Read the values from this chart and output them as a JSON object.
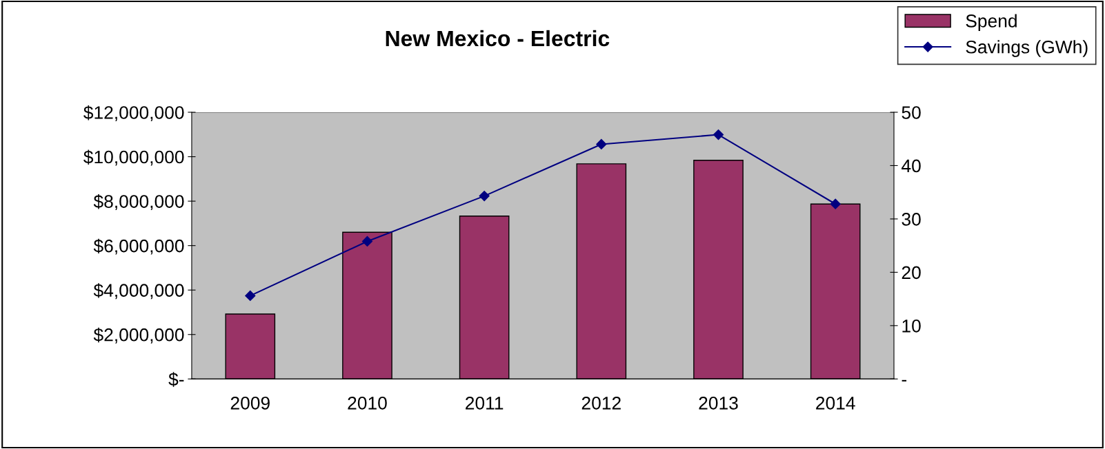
{
  "chart_data": {
    "type": "bar",
    "title": "New Mexico - Electric",
    "categories": [
      "2009",
      "2010",
      "2011",
      "2012",
      "2013",
      "2014"
    ],
    "series": [
      {
        "name": "Spend",
        "color": "#993366",
        "values": [
          2920000,
          6600000,
          7330000,
          9680000,
          9840000,
          7870000
        ]
      },
      {
        "name": "Savings (GWh)",
        "type": "line",
        "axis": "y2",
        "color": "#000080",
        "values": [
          15.6,
          25.8,
          34.3,
          44.0,
          45.8,
          32.8
        ]
      }
    ],
    "ylim": [
      0,
      12000000
    ],
    "yticks": [
      {
        "value": 0,
        "label": "$-"
      },
      {
        "value": 2000000,
        "label": "$2,000,000"
      },
      {
        "value": 4000000,
        "label": "$4,000,000"
      },
      {
        "value": 6000000,
        "label": "$6,000,000"
      },
      {
        "value": 8000000,
        "label": "$8,000,000"
      },
      {
        "value": 10000000,
        "label": "$10,000,000"
      },
      {
        "value": 12000000,
        "label": "$12,000,000"
      }
    ],
    "y2lim": [
      0,
      50
    ],
    "y2ticks": [
      {
        "value": 0,
        "label": "-"
      },
      10,
      20,
      30,
      40,
      50
    ],
    "marker": "diamond",
    "line_style": "solid",
    "grid": false,
    "legend": "top right"
  }
}
